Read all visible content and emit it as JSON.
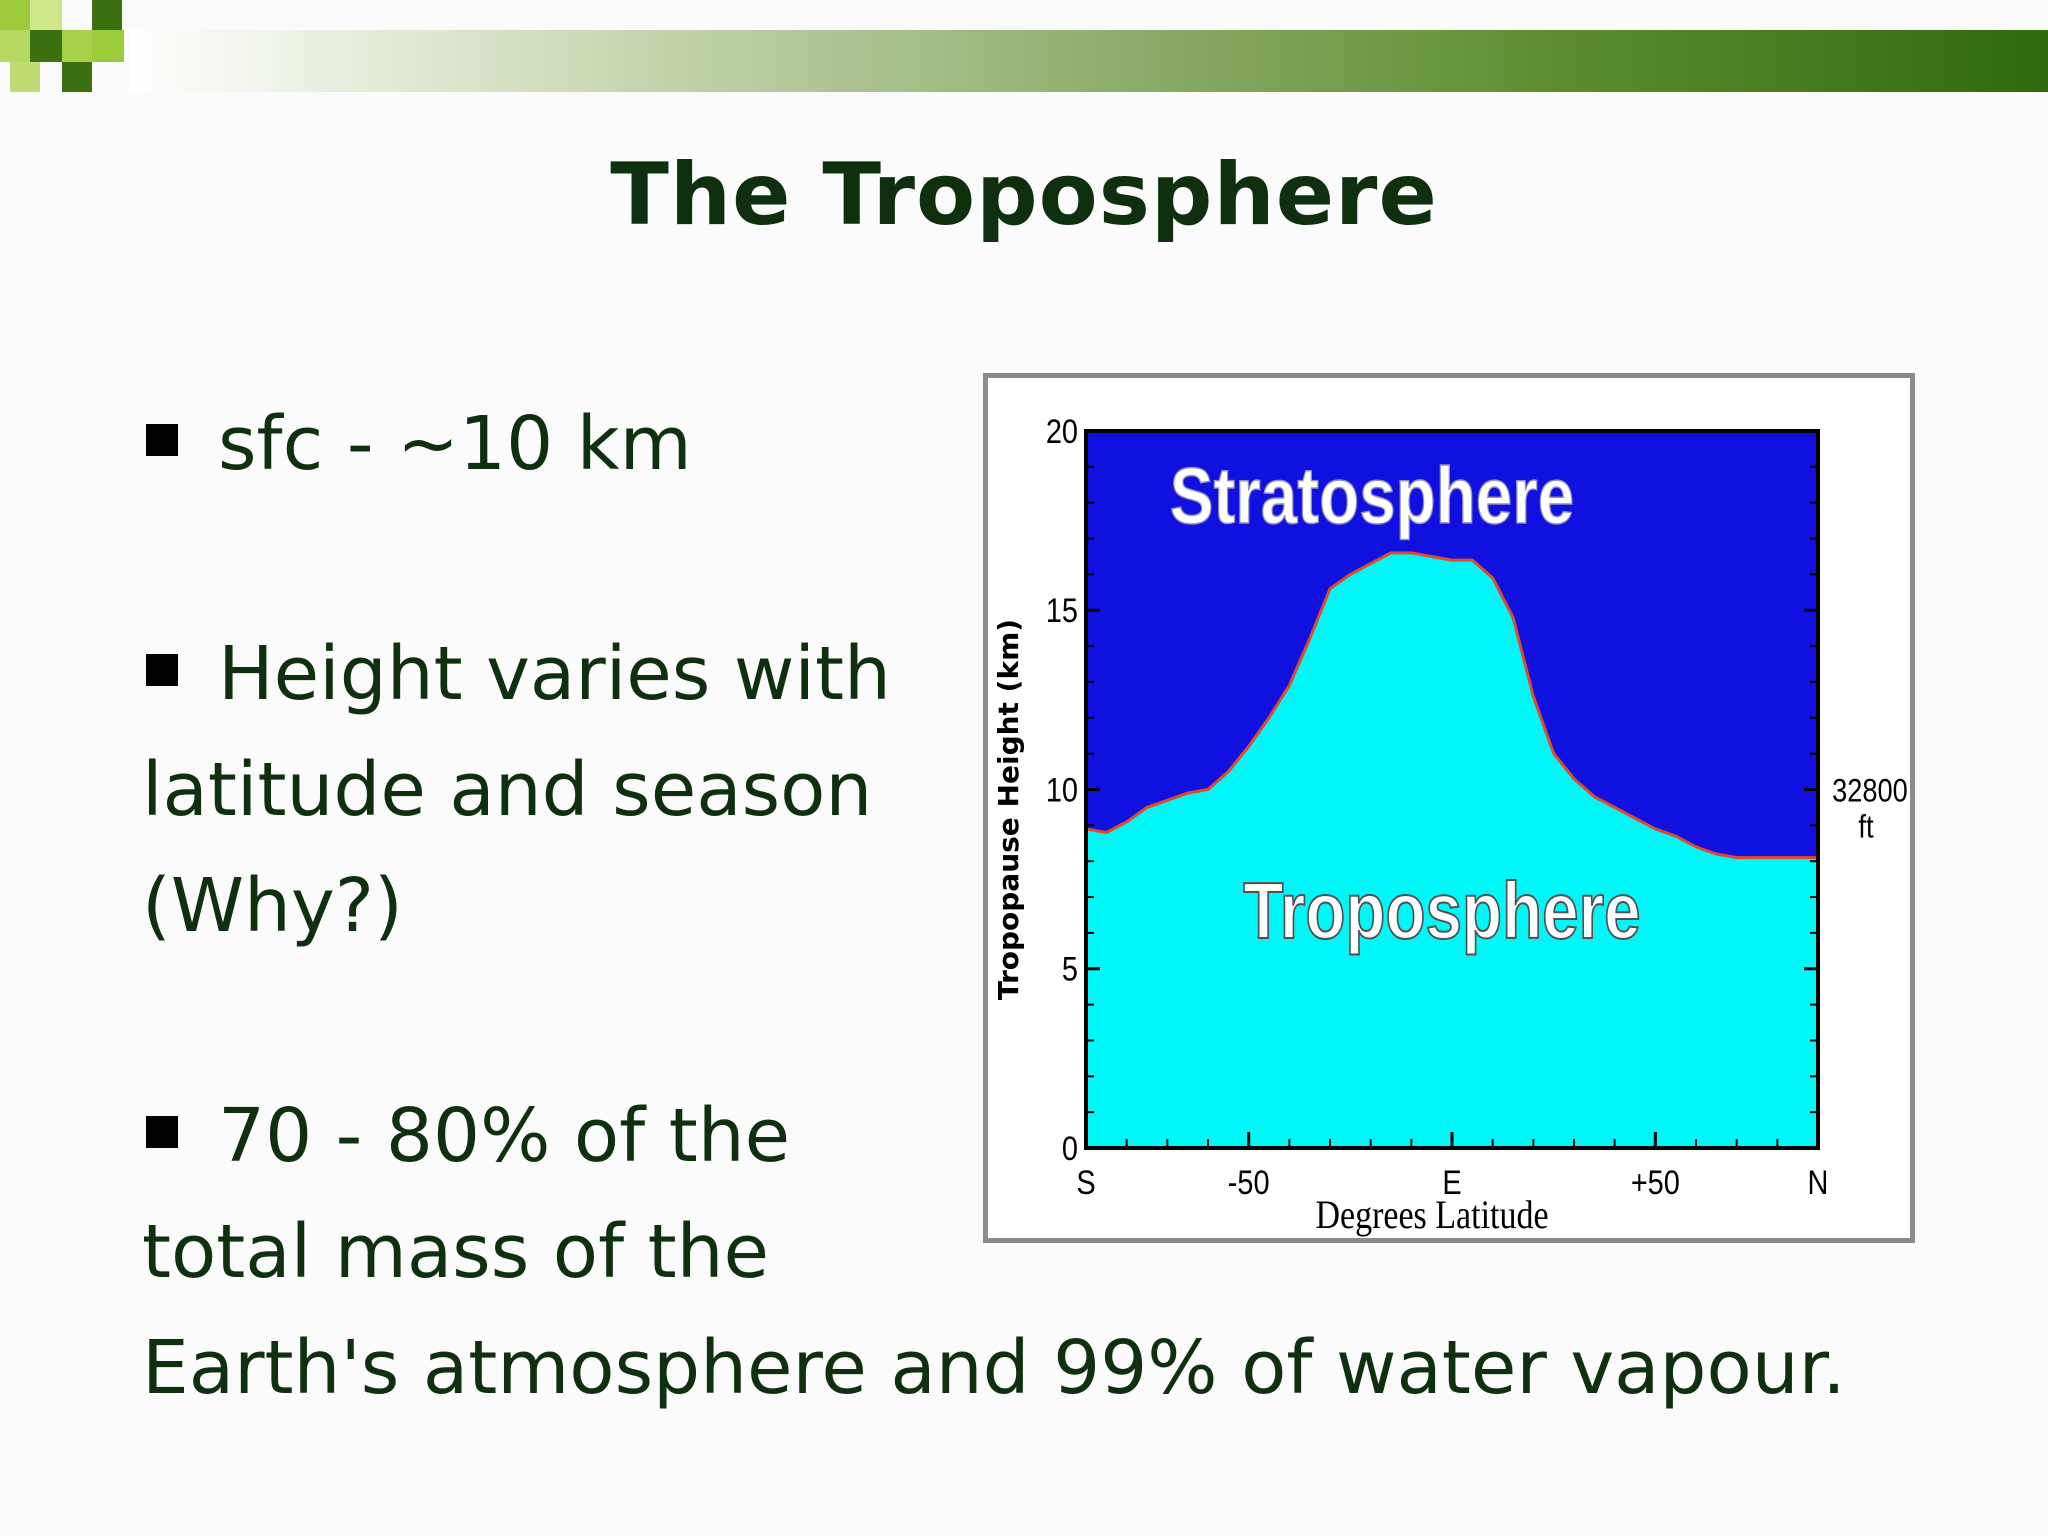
{
  "slide": {
    "title": "The Troposphere",
    "bullets": [
      {
        "lines": [
          "sfc - ~10 km"
        ]
      },
      {
        "lines": [
          "Height varies with",
          "latitude and season",
          "(Why?)"
        ]
      },
      {
        "lines": [
          "70 - 80% of the",
          "total mass of the",
          "Earth's atmosphere and 99% of water vapour."
        ]
      }
    ]
  },
  "colors": {
    "text": "#0f300f",
    "stratosphere": "#1010e0",
    "troposphere": "#00f7f7",
    "boundary": "#e04a2a",
    "frame": "#8c8c8c"
  },
  "chart_data": {
    "type": "area",
    "xlabel": "Degrees Latitude",
    "ylabel": "Tropopause Height (km)",
    "ylim": [
      0,
      20
    ],
    "xlim": [
      -90,
      90
    ],
    "x_ticks": [
      {
        "value": -90,
        "label": "S"
      },
      {
        "value": -50,
        "label": "-50"
      },
      {
        "value": 0,
        "label": "E"
      },
      {
        "value": 50,
        "label": "+50"
      },
      {
        "value": 90,
        "label": "N"
      }
    ],
    "y_ticks": [
      0,
      5,
      10,
      15,
      20
    ],
    "right_annotation": [
      "32800",
      "ft"
    ],
    "right_annotation_value": 10,
    "region_labels": {
      "upper": "Stratosphere",
      "lower": "Troposphere"
    },
    "series": [
      {
        "x": [
          -90,
          -85,
          -80,
          -75,
          -70,
          -65,
          -60,
          -55,
          -50,
          -45,
          -40,
          -35,
          -30,
          -25,
          -20,
          -15,
          -10,
          -5,
          0,
          5,
          10,
          15,
          20,
          25,
          30,
          35,
          40,
          45,
          50,
          55,
          60,
          65,
          70,
          75,
          80,
          85,
          90
        ],
        "y": [
          8.9,
          8.8,
          9.1,
          9.5,
          9.7,
          9.9,
          10.0,
          10.5,
          11.2,
          12.0,
          12.9,
          14.2,
          15.6,
          16.0,
          16.3,
          16.6,
          16.6,
          16.5,
          16.4,
          16.4,
          15.9,
          14.8,
          12.6,
          11.0,
          10.3,
          9.8,
          9.5,
          9.2,
          8.9,
          8.7,
          8.4,
          8.2,
          8.1,
          8.1,
          8.1,
          8.1,
          8.1
        ]
      }
    ],
    "grid": false
  }
}
